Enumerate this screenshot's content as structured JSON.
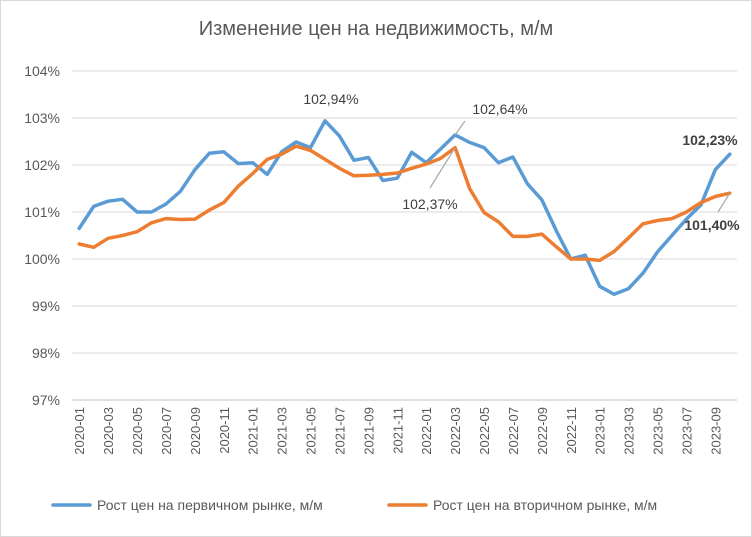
{
  "title": "Изменение цен на недвижимость, м/м",
  "chart_data": {
    "type": "line",
    "title": "Изменение цен на недвижимость, м/м",
    "xlabel": "",
    "ylabel": "",
    "ylim": [
      97,
      104
    ],
    "y_ticks": [
      "97%",
      "98%",
      "99%",
      "100%",
      "101%",
      "102%",
      "103%",
      "104%"
    ],
    "x_tick_labels": [
      "2020-01",
      "2020-03",
      "2020-05",
      "2020-07",
      "2020-09",
      "2020-11",
      "2021-01",
      "2021-03",
      "2021-05",
      "2021-07",
      "2021-09",
      "2021-11",
      "2022-01",
      "2022-03",
      "2022-05",
      "2022-07",
      "2022-09",
      "2022-11",
      "2023-01",
      "2023-03",
      "2023-05",
      "2023-07",
      "2023-09"
    ],
    "grid": true,
    "legend_position": "bottom",
    "categories": [
      "2020-01",
      "2020-02",
      "2020-03",
      "2020-04",
      "2020-05",
      "2020-06",
      "2020-07",
      "2020-08",
      "2020-09",
      "2020-10",
      "2020-11",
      "2020-12",
      "2021-01",
      "2021-02",
      "2021-03",
      "2021-04",
      "2021-05",
      "2021-06",
      "2021-07",
      "2021-08",
      "2021-09",
      "2021-10",
      "2021-11",
      "2021-12",
      "2022-01",
      "2022-02",
      "2022-03",
      "2022-04",
      "2022-05",
      "2022-06",
      "2022-07",
      "2022-08",
      "2022-09",
      "2022-10",
      "2022-11",
      "2022-12",
      "2023-01",
      "2023-02",
      "2023-03",
      "2023-04",
      "2023-05",
      "2023-06",
      "2023-07",
      "2023-08",
      "2023-09",
      "2023-10"
    ],
    "series": [
      {
        "name": "Рост цен на первичном рынке, м/м",
        "color": "#5b9bd5",
        "values": [
          100.65,
          101.12,
          101.23,
          101.27,
          101.0,
          101.0,
          101.17,
          101.44,
          101.9,
          102.25,
          102.28,
          102.03,
          102.05,
          101.8,
          102.28,
          102.49,
          102.37,
          102.94,
          102.62,
          102.1,
          102.16,
          101.67,
          101.72,
          102.27,
          102.05,
          102.34,
          102.64,
          102.48,
          102.37,
          102.05,
          102.17,
          101.6,
          101.26,
          100.6,
          100.0,
          100.08,
          99.42,
          99.25,
          99.37,
          99.7,
          100.15,
          100.5,
          100.85,
          101.15,
          101.9,
          102.23
        ]
      },
      {
        "name": "Рост цен на вторичном рынке, м/м",
        "color": "#ed7d31",
        "values": [
          100.32,
          100.25,
          100.44,
          100.5,
          100.58,
          100.77,
          100.86,
          100.84,
          100.85,
          101.04,
          101.2,
          101.55,
          101.82,
          102.12,
          102.23,
          102.4,
          102.31,
          102.12,
          101.93,
          101.77,
          101.78,
          101.8,
          101.83,
          101.93,
          102.02,
          102.14,
          102.37,
          101.5,
          100.99,
          100.79,
          100.48,
          100.48,
          100.53,
          100.26,
          100.0,
          100.0,
          99.97,
          100.16,
          100.45,
          100.75,
          100.82,
          100.86,
          101.0,
          101.2,
          101.33,
          101.4
        ]
      }
    ],
    "annotations": [
      {
        "text": "102,94%",
        "bold": false
      },
      {
        "text": "102,64%",
        "bold": false
      },
      {
        "text": "102,37%",
        "bold": false
      },
      {
        "text": "102,23%",
        "bold": true
      },
      {
        "text": "101,40%",
        "bold": true
      }
    ]
  }
}
